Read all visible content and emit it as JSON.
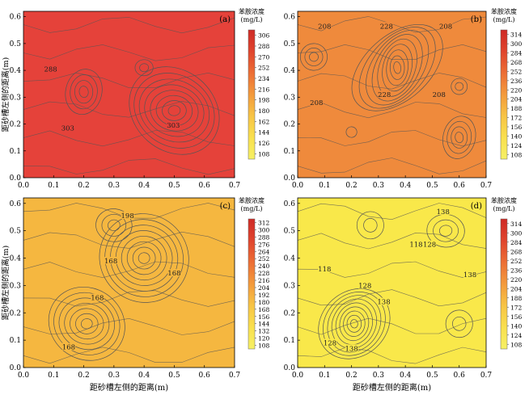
{
  "chart_data": [
    {
      "panel_label": "(a)",
      "type": "heatmap",
      "xlabel": "",
      "ylabel": "距砂槽左侧的距离(m)",
      "xlim": [
        0.0,
        0.7
      ],
      "ylim": [
        0.0,
        0.62
      ],
      "x_ticks": [
        "0.0",
        "0.1",
        "0.2",
        "0.3",
        "0.4",
        "0.5",
        "0.6",
        "0.7"
      ],
      "y_ticks": [
        "0.0",
        "0.1",
        "0.2",
        "0.3",
        "0.4",
        "0.5",
        "0.6"
      ],
      "colorbar_title": [
        "苯胺浓度",
        "(mg/L)"
      ],
      "colorbar_ticks": [
        "306",
        "288",
        "270",
        "252",
        "234",
        "216",
        "198",
        "180",
        "162",
        "144",
        "126",
        "108"
      ],
      "fill": "#e5423a",
      "contour_labels": [
        {
          "text": "288",
          "x": 0.09,
          "y": 0.405
        },
        {
          "text": "303",
          "x": 0.147,
          "y": 0.185
        },
        {
          "text": "303",
          "x": 0.497,
          "y": 0.195
        }
      ],
      "centers": [
        {
          "x": 0.2,
          "y": 0.32,
          "rx": 0.06,
          "ry": 0.085,
          "n": 4
        },
        {
          "x": 0.5,
          "y": 0.25,
          "rx": 0.16,
          "ry": 0.15,
          "n": 8
        },
        {
          "x": 0.4,
          "y": 0.41,
          "rx": 0.03,
          "ry": 0.03,
          "n": 2
        }
      ]
    },
    {
      "panel_label": "(b)",
      "type": "heatmap",
      "xlabel": "",
      "ylabel": "",
      "xlim": [
        0.0,
        0.7
      ],
      "ylim": [
        0.0,
        0.62
      ],
      "x_ticks": [
        "0.0",
        "0.1",
        "0.2",
        "0.3",
        "0.4",
        "0.5",
        "0.6",
        "0.7"
      ],
      "y_ticks": [
        "0.0",
        "0.1",
        "0.2",
        "0.3",
        "0.4",
        "0.5",
        "0.6"
      ],
      "colorbar_title": [
        "苯胺浓度",
        "(mg/L)"
      ],
      "colorbar_ticks": [
        "314",
        "300",
        "284",
        "268",
        "252",
        "236",
        "220",
        "204",
        "188",
        "172",
        "156",
        "140",
        "124",
        "108"
      ],
      "fill": "#ef8a3c",
      "contour_labels": [
        {
          "text": "208",
          "x": 0.1,
          "y": 0.565
        },
        {
          "text": "228",
          "x": 0.33,
          "y": 0.565
        },
        {
          "text": "208",
          "x": 0.55,
          "y": 0.565
        },
        {
          "text": "208",
          "x": 0.07,
          "y": 0.28
        },
        {
          "text": "228",
          "x": 0.322,
          "y": 0.31
        },
        {
          "text": "208",
          "x": 0.525,
          "y": 0.31
        }
      ],
      "centers": [
        {
          "x": 0.37,
          "y": 0.41,
          "rx": 0.12,
          "ry": 0.2,
          "n": 9
        },
        {
          "x": 0.6,
          "y": 0.15,
          "rx": 0.06,
          "ry": 0.08,
          "n": 4
        },
        {
          "x": 0.06,
          "y": 0.45,
          "rx": 0.05,
          "ry": 0.05,
          "n": 3
        },
        {
          "x": 0.6,
          "y": 0.34,
          "rx": 0.03,
          "ry": 0.03,
          "n": 2
        },
        {
          "x": 0.2,
          "y": 0.17,
          "rx": 0.02,
          "ry": 0.02,
          "n": 1
        }
      ]
    },
    {
      "panel_label": "(c)",
      "type": "heatmap",
      "xlabel": "距砂槽左侧的距离(m)",
      "ylabel": "距砂槽左侧的距离(m)",
      "xlim": [
        0.0,
        0.7
      ],
      "ylim": [
        0.0,
        0.62
      ],
      "x_ticks": [
        "0.0",
        "0.1",
        "0.2",
        "0.3",
        "0.4",
        "0.5",
        "0.6",
        "0.7"
      ],
      "y_ticks": [
        "0.0",
        "0.1",
        "0.2",
        "0.3",
        "0.4",
        "0.5",
        "0.6"
      ],
      "colorbar_title": [
        "苯胺浓度",
        "(mg/L)"
      ],
      "colorbar_ticks": [
        "312",
        "300",
        "288",
        "276",
        "264",
        "252",
        "240",
        "228",
        "216",
        "204",
        "192",
        "180",
        "168",
        "156",
        "144",
        "132",
        "120",
        "108"
      ],
      "fill": "#f5b740",
      "contour_labels": [
        {
          "text": "198",
          "x": 0.345,
          "y": 0.555
        },
        {
          "text": "168",
          "x": 0.29,
          "y": 0.39
        },
        {
          "text": "168",
          "x": 0.5,
          "y": 0.345
        },
        {
          "text": "168",
          "x": 0.245,
          "y": 0.255
        },
        {
          "text": "168",
          "x": 0.15,
          "y": 0.075
        }
      ],
      "centers": [
        {
          "x": 0.4,
          "y": 0.4,
          "rx": 0.15,
          "ry": 0.16,
          "n": 8
        },
        {
          "x": 0.21,
          "y": 0.16,
          "rx": 0.13,
          "ry": 0.13,
          "n": 7
        },
        {
          "x": 0.3,
          "y": 0.52,
          "rx": 0.06,
          "ry": 0.06,
          "n": 3
        }
      ]
    },
    {
      "panel_label": "(d)",
      "type": "heatmap",
      "xlabel": "距砂槽左侧的距离(m)",
      "ylabel": "",
      "xlim": [
        0.0,
        0.7
      ],
      "ylim": [
        0.0,
        0.62
      ],
      "x_ticks": [
        "0.0",
        "0.1",
        "0.2",
        "0.3",
        "0.4",
        "0.5",
        "0.6",
        "0.7"
      ],
      "y_ticks": [
        "0.0",
        "0.1",
        "0.2",
        "0.3",
        "0.4",
        "0.5",
        "0.6"
      ],
      "colorbar_title": [
        "苯胺浓度",
        "(mg/L)"
      ],
      "colorbar_ticks": [
        "314",
        "300",
        "284",
        "268",
        "252",
        "236",
        "220",
        "204",
        "188",
        "172",
        "156",
        "140",
        "124",
        "108"
      ],
      "fill": "#f9e84a",
      "contour_labels": [
        {
          "text": "138",
          "x": 0.54,
          "y": 0.57
        },
        {
          "text": "118",
          "x": 0.44,
          "y": 0.45
        },
        {
          "text": "128",
          "x": 0.49,
          "y": 0.45
        },
        {
          "text": "118",
          "x": 0.1,
          "y": 0.36
        },
        {
          "text": "128",
          "x": 0.25,
          "y": 0.3
        },
        {
          "text": "138",
          "x": 0.64,
          "y": 0.34
        },
        {
          "text": "138",
          "x": 0.32,
          "y": 0.24
        },
        {
          "text": "128",
          "x": 0.12,
          "y": 0.09
        },
        {
          "text": "138",
          "x": 0.2,
          "y": 0.07
        }
      ],
      "centers": [
        {
          "x": 0.21,
          "y": 0.16,
          "rx": 0.12,
          "ry": 0.14,
          "n": 9
        },
        {
          "x": 0.55,
          "y": 0.5,
          "rx": 0.07,
          "ry": 0.06,
          "n": 3
        },
        {
          "x": 0.6,
          "y": 0.16,
          "rx": 0.05,
          "ry": 0.05,
          "n": 2
        },
        {
          "x": 0.27,
          "y": 0.52,
          "rx": 0.05,
          "ry": 0.05,
          "n": 2
        }
      ]
    }
  ],
  "colors": {
    "colorbar_gradient": [
      "#cf2a26",
      "#e0452e",
      "#ec6e35",
      "#f39a3c",
      "#f7c445",
      "#f9e04e",
      "#f6f065"
    ],
    "contour": "#555555",
    "axis": "#000000"
  }
}
